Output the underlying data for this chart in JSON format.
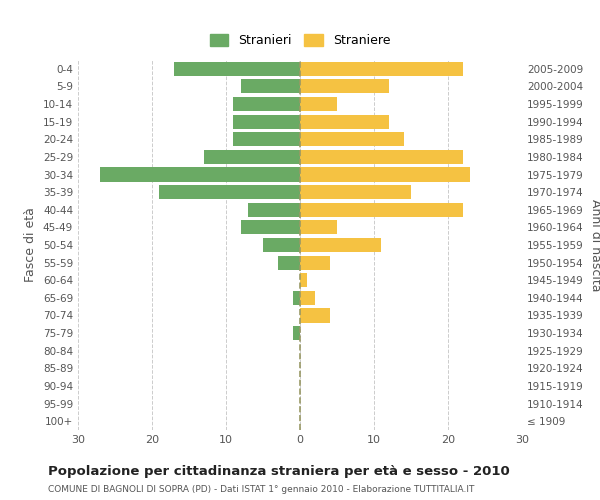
{
  "age_groups": [
    "100+",
    "95-99",
    "90-94",
    "85-89",
    "80-84",
    "75-79",
    "70-74",
    "65-69",
    "60-64",
    "55-59",
    "50-54",
    "45-49",
    "40-44",
    "35-39",
    "30-34",
    "25-29",
    "20-24",
    "15-19",
    "10-14",
    "5-9",
    "0-4"
  ],
  "birth_years": [
    "≤ 1909",
    "1910-1914",
    "1915-1919",
    "1920-1924",
    "1925-1929",
    "1930-1934",
    "1935-1939",
    "1940-1944",
    "1945-1949",
    "1950-1954",
    "1955-1959",
    "1960-1964",
    "1965-1969",
    "1970-1974",
    "1975-1979",
    "1980-1984",
    "1985-1989",
    "1990-1994",
    "1995-1999",
    "2000-2004",
    "2005-2009"
  ],
  "males": [
    0,
    0,
    0,
    0,
    0,
    1,
    0,
    1,
    0,
    3,
    5,
    8,
    7,
    19,
    27,
    13,
    9,
    9,
    9,
    8,
    17
  ],
  "females": [
    0,
    0,
    0,
    0,
    0,
    0,
    4,
    2,
    1,
    4,
    11,
    5,
    22,
    15,
    23,
    22,
    14,
    12,
    5,
    12,
    22
  ],
  "male_color": "#6aaa64",
  "female_color": "#f5c242",
  "male_label": "Stranieri",
  "female_label": "Straniere",
  "title": "Popolazione per cittadinanza straniera per età e sesso - 2010",
  "subtitle": "COMUNE DI BAGNOLI DI SOPRA (PD) - Dati ISTAT 1° gennaio 2010 - Elaborazione TUTTITALIA.IT",
  "ylabel_left": "Fasce di età",
  "ylabel_right": "Anni di nascita",
  "xlim": 30,
  "bg_color": "#ffffff",
  "grid_color": "#cccccc",
  "bar_height": 0.8
}
